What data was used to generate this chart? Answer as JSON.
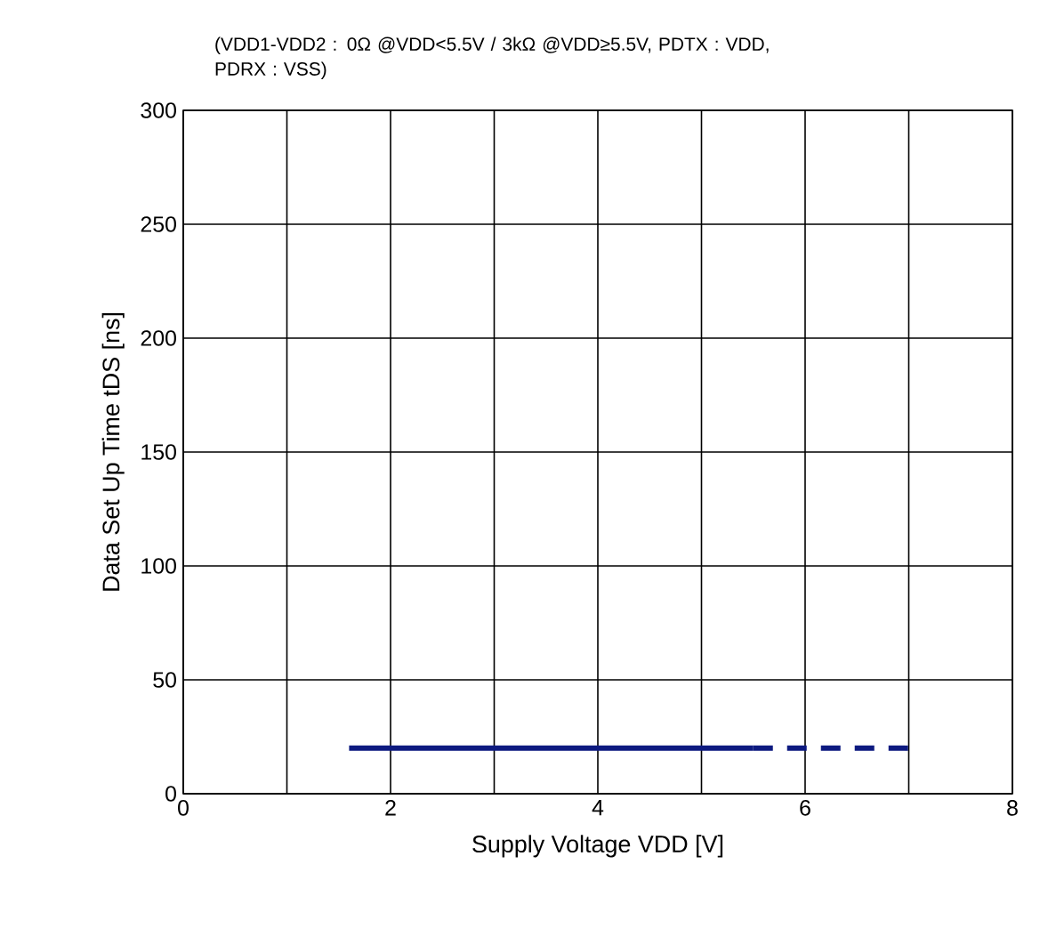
{
  "chart_data": {
    "type": "line",
    "title": "(VDD1-VDD2 : 0Ω @VDD<5.5V / 3kΩ @VDD≥5.5V, PDTX : VDD, PDRX : VSS)",
    "xlabel": "Supply Voltage VDD [V]",
    "ylabel": "Data Set Up Time tDS [ns]",
    "series": [
      {
        "color": "#0d1a80",
        "x": [
          1.6,
          5.5
        ],
        "values": [
          20,
          20
        ],
        "line_style": "solid"
      },
      {
        "color": "#0d1a80",
        "x": [
          5.5,
          7.0
        ],
        "values": [
          20,
          20
        ],
        "line_style": "dashed"
      }
    ],
    "xlim": [
      0,
      8
    ],
    "ylim": [
      0,
      300
    ],
    "xticks": [
      0,
      {
        "value": 1,
        "label": null
      },
      2,
      {
        "value": 3,
        "label": null
      },
      4,
      {
        "value": 5,
        "label": null
      },
      6,
      {
        "value": 7,
        "label": null
      },
      8
    ],
    "yticks": [
      0,
      50,
      100,
      150,
      200,
      250,
      300
    ],
    "grid": true,
    "marker": "none"
  }
}
